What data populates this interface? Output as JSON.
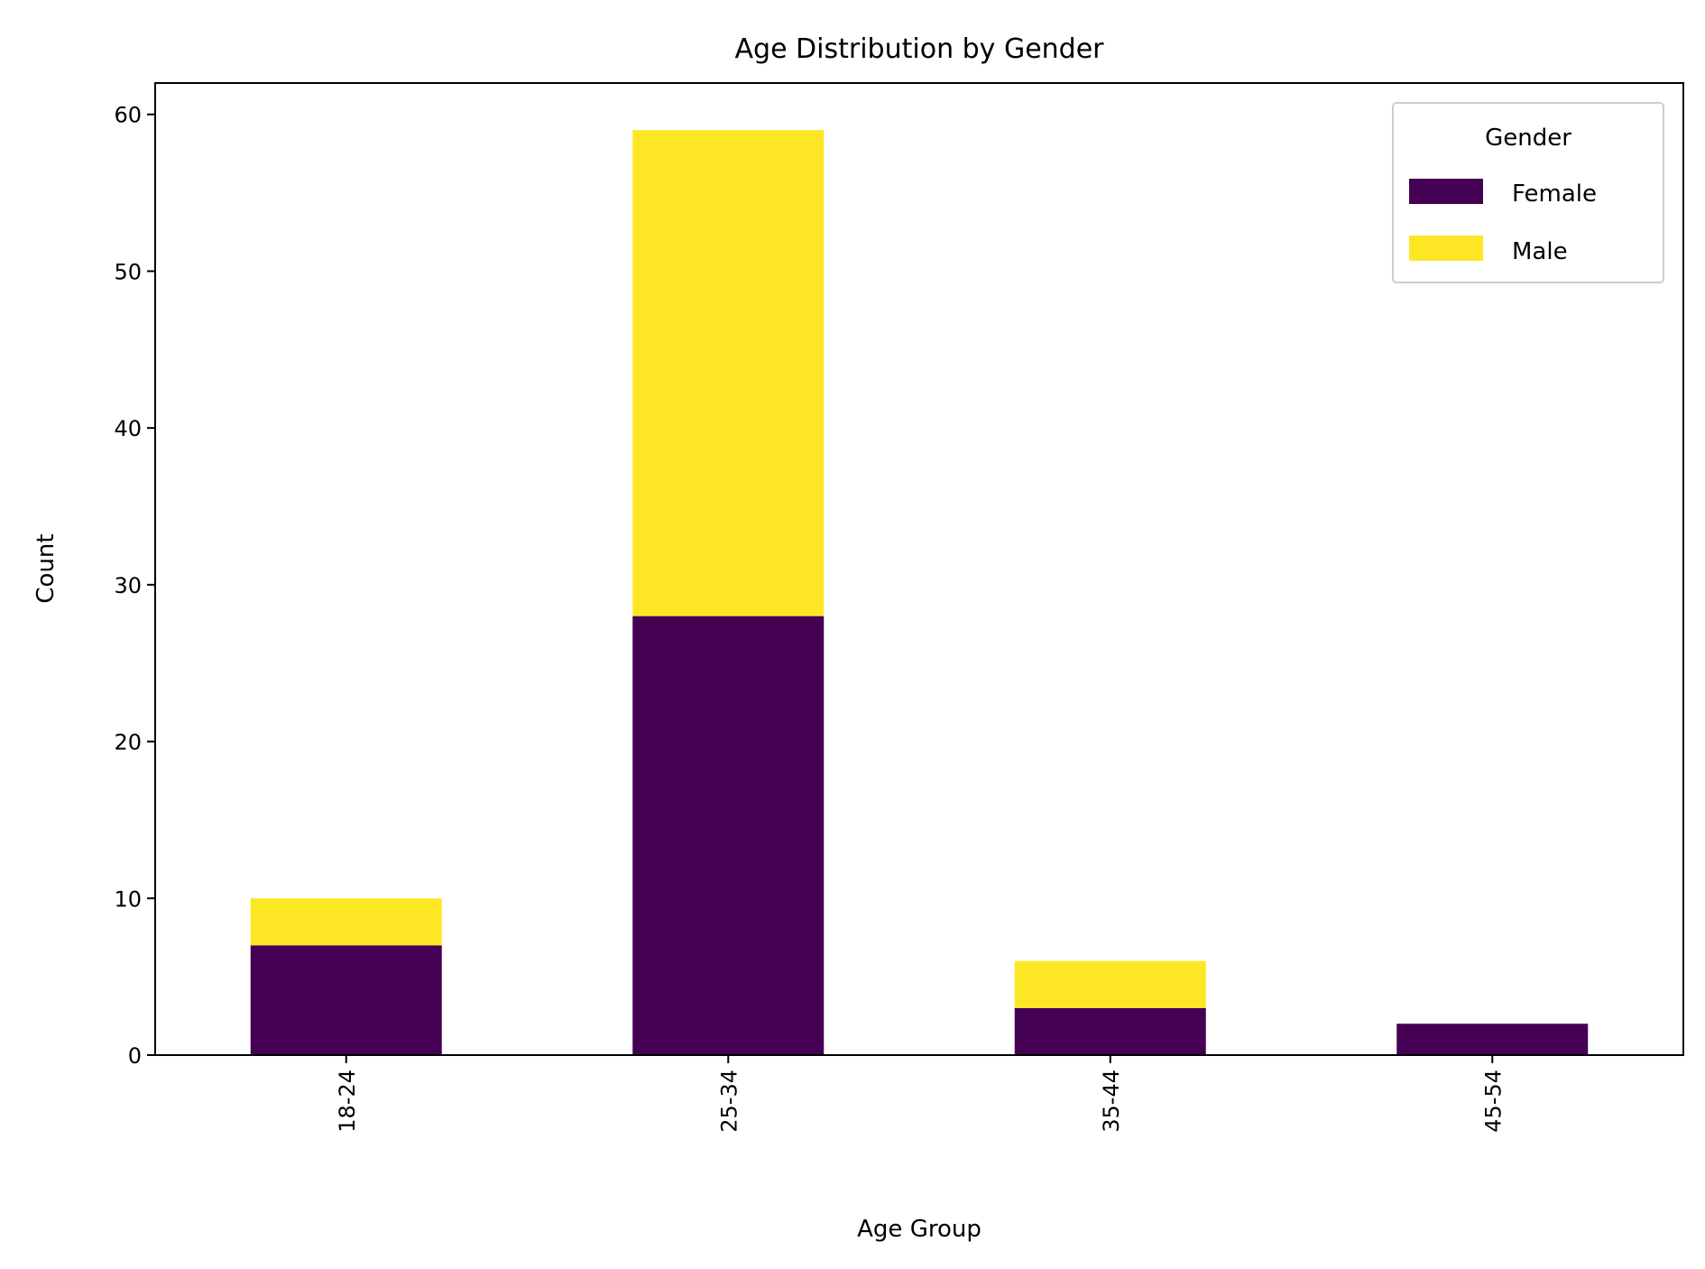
{
  "chart_data": {
    "type": "bar",
    "stacked": true,
    "title": "Age Distribution by Gender",
    "xlabel": "Age Group",
    "ylabel": "Count",
    "categories": [
      "18-24",
      "25-34",
      "35-44",
      "45-54"
    ],
    "series": [
      {
        "name": "Female",
        "color": "#440154",
        "values": [
          7,
          28,
          3,
          2
        ]
      },
      {
        "name": "Male",
        "color": "#fde725",
        "values": [
          3,
          31,
          3,
          0
        ]
      }
    ],
    "ylim": [
      0,
      62
    ],
    "yticks": [
      0,
      10,
      20,
      30,
      40,
      50,
      60
    ],
    "grid": false,
    "legend": {
      "title": "Gender",
      "placement": "top-right"
    }
  }
}
